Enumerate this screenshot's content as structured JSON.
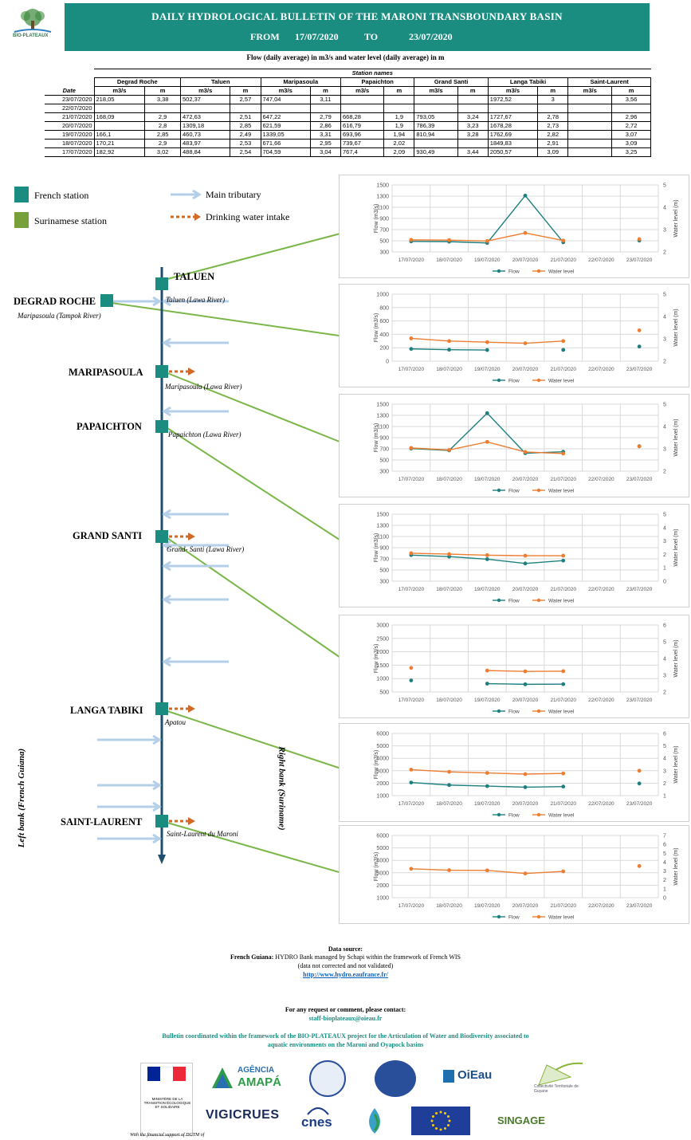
{
  "header": {
    "logo_text": "BIO-PLATEAUX",
    "title": "DAILY HYDROLOGICAL BULLETIN OF THE MARONI TRANSBOUNDARY BASIN",
    "from_label": "FROM",
    "from_date": "17/07/2020",
    "to_label": "TO",
    "to_date": "23/07/2020"
  },
  "subtitle": "Flow (daily average) in m3/s and water level (daily average) in m",
  "table": {
    "station_names_label": "Station names",
    "date_label": "Date",
    "stations": [
      "Degrad Roche",
      "Taluen",
      "Maripasoula",
      "Papaichton",
      "Grand Santi",
      "Langa Tabiki",
      "Saint-Laurent"
    ],
    "units": [
      "m3/s",
      "m",
      "m3/s",
      "m",
      "m3/s",
      "m",
      "m3/s",
      "m",
      "m3/s",
      "m",
      "m3/s",
      "m",
      "m3/s",
      "m"
    ],
    "rows": [
      {
        "date": "23/07/2020",
        "vals": [
          "218,05",
          "3,38",
          "502,37",
          "2,57",
          "747,04",
          "3,11",
          "",
          "",
          "",
          "",
          "1972,52",
          "3",
          "",
          "3,56"
        ]
      },
      {
        "date": "22/07/2020",
        "vals": [
          "",
          "",
          "",
          "",
          "",
          "",
          "",
          "",
          "",
          "",
          "",
          "",
          "",
          ""
        ]
      },
      {
        "date": "21/07/2020",
        "vals": [
          "168,09",
          "2,9",
          "472,63",
          "2,51",
          "647,22",
          "2,79",
          "668,28",
          "1,9",
          "793,05",
          "3,24",
          "1727,67",
          "2,78",
          "",
          "2,96"
        ]
      },
      {
        "date": "20/07/2020",
        "vals": [
          "",
          "2,8",
          "1309,18",
          "2,85",
          "621,59",
          "2,86",
          "616,79",
          "1,9",
          "786,39",
          "3,23",
          "1678,28",
          "2,73",
          "",
          "2,72"
        ]
      },
      {
        "date": "19/07/2020",
        "vals": [
          "166,1",
          "2,85",
          "460,73",
          "2,49",
          "1339,05",
          "3,31",
          "693,96",
          "1,94",
          "810,94",
          "3,28",
          "1762,69",
          "2,82",
          "",
          "3,07"
        ]
      },
      {
        "date": "18/07/2020",
        "vals": [
          "170,21",
          "2,9",
          "483,97",
          "2,53",
          "671,66",
          "2,95",
          "739,67",
          "2,02",
          "",
          "",
          "1849,83",
          "2,91",
          "",
          "3,09"
        ]
      },
      {
        "date": "17/07/2020",
        "vals": [
          "182,92",
          "3,02",
          "488,84",
          "2,54",
          "704,59",
          "3,04",
          "767,4",
          "2,09",
          "930,49",
          "3,44",
          "2050,57",
          "3,09",
          "",
          "3,25"
        ]
      }
    ]
  },
  "legend": {
    "french_station": "French station",
    "surinamese_station": "Surinamese station",
    "main_tributary": "Main tributary",
    "drinking_water": "Drinking water intake",
    "colors": {
      "french": "#1a8c80",
      "surinamese": "#77a03a",
      "tributary": "#b5cfe8",
      "intake": "#d06a25",
      "river": "#1f4e6e",
      "link": "#7ab648",
      "flow": "#1f7f7f",
      "level": "#ed7d31"
    }
  },
  "diagram": {
    "stations": {
      "taluen": "TALUEN",
      "degrad": "DEGRAD ROCHE",
      "maripasoula": "MARIPASOULA",
      "papaichton": "PAPAICHTON",
      "grand_santi": "GRAND SANTI",
      "langa_tabiki": "LANGA TABIKI",
      "saint_laurent": "SAINT-LAURENT"
    },
    "tribs": {
      "taluen": "Taluen (Lawa River)",
      "degrad": "Maripasoula (Tampok River)",
      "maripasoula": "Maripasoula (Lawa River)",
      "papaichton": "Papaichton (Lawa River)",
      "grand_santi": "Grand- Santi (Lawa River)",
      "langa_tabiki": "Apatou",
      "saint_laurent": "Saint-Laurent du Maroni"
    },
    "left_bank": "Left bank (French Guiana)",
    "right_bank": "Right bank (Suriname)"
  },
  "chart_data": [
    {
      "type": "line",
      "station": "Taluen",
      "x": [
        "17/07/2020",
        "18/07/2020",
        "19/07/2020",
        "20/07/2020",
        "21/07/2020",
        "22/07/2020",
        "23/07/2020"
      ],
      "ylabel": "Flow (m3/s)",
      "y2label": "Water level (m)",
      "ylim": [
        300,
        1500
      ],
      "yticks": [
        300,
        500,
        700,
        900,
        1100,
        1300,
        1500
      ],
      "y2lim": [
        2,
        5
      ],
      "y2ticks": [
        2,
        3,
        4,
        5
      ],
      "series": [
        {
          "name": "Flow",
          "axis": "left",
          "values": [
            488.84,
            483.97,
            460.73,
            1309.18,
            472.63,
            null,
            502.37
          ]
        },
        {
          "name": "Water level",
          "axis": "right",
          "values": [
            2.54,
            2.53,
            2.49,
            2.85,
            2.51,
            null,
            2.57
          ]
        }
      ]
    },
    {
      "type": "line",
      "station": "Degrad Roche",
      "x": [
        "17/07/2020",
        "18/07/2020",
        "19/07/2020",
        "20/07/2020",
        "21/07/2020",
        "22/07/2020",
        "23/07/2020"
      ],
      "ylabel": "Flow (m3/s)",
      "y2label": "Water level (m)",
      "ylim": [
        0,
        1000
      ],
      "yticks": [
        0,
        200,
        400,
        600,
        800,
        1000
      ],
      "y2lim": [
        2,
        5
      ],
      "y2ticks": [
        2,
        3,
        4,
        5
      ],
      "series": [
        {
          "name": "Flow",
          "axis": "left",
          "values": [
            182.92,
            170.21,
            166.1,
            null,
            168.09,
            null,
            218.05
          ]
        },
        {
          "name": "Water level",
          "axis": "right",
          "values": [
            3.02,
            2.9,
            2.85,
            2.8,
            2.9,
            null,
            3.38
          ]
        }
      ]
    },
    {
      "type": "line",
      "station": "Maripasoula",
      "x": [
        "17/07/2020",
        "18/07/2020",
        "19/07/2020",
        "20/07/2020",
        "21/07/2020",
        "22/07/2020",
        "23/07/2020"
      ],
      "ylabel": "Flow (m3/s)",
      "y2label": "Water level (m)",
      "ylim": [
        300,
        1500
      ],
      "yticks": [
        300,
        500,
        700,
        900,
        1100,
        1300,
        1500
      ],
      "y2lim": [
        2,
        5
      ],
      "y2ticks": [
        2,
        3,
        4,
        5
      ],
      "series": [
        {
          "name": "Flow",
          "axis": "left",
          "values": [
            704.59,
            671.66,
            1339.05,
            621.59,
            647.22,
            null,
            747.04
          ]
        },
        {
          "name": "Water level",
          "axis": "right",
          "values": [
            3.04,
            2.95,
            3.31,
            2.86,
            2.79,
            null,
            3.11
          ]
        }
      ]
    },
    {
      "type": "line",
      "station": "Papaichton",
      "x": [
        "17/07/2020",
        "18/07/2020",
        "19/07/2020",
        "20/07/2020",
        "21/07/2020",
        "22/07/2020",
        "23/07/2020"
      ],
      "ylabel": "Flow (m3/s)",
      "y2label": "Water level (m)",
      "ylim": [
        300,
        1500
      ],
      "yticks": [
        300,
        500,
        700,
        900,
        1100,
        1300,
        1500
      ],
      "y2lim": [
        0,
        5
      ],
      "y2ticks": [
        0,
        1,
        2,
        3,
        4,
        5
      ],
      "series": [
        {
          "name": "Flow",
          "axis": "left",
          "values": [
            767.4,
            739.67,
            693.96,
            616.79,
            668.28,
            null,
            null
          ]
        },
        {
          "name": "Water level",
          "axis": "right",
          "values": [
            2.09,
            2.02,
            1.94,
            1.9,
            1.9,
            null,
            null
          ]
        }
      ]
    },
    {
      "type": "line",
      "station": "Grand Santi",
      "x": [
        "17/07/2020",
        "18/07/2020",
        "19/07/2020",
        "20/07/2020",
        "21/07/2020",
        "22/07/2020",
        "23/07/2020"
      ],
      "ylabel": "Flow (m3/s)",
      "y2label": "Water level (m)",
      "ylim": [
        500,
        3000
      ],
      "yticks": [
        500,
        1000,
        1500,
        2000,
        2500,
        3000
      ],
      "y2lim": [
        2,
        6
      ],
      "y2ticks": [
        2,
        3,
        4,
        5,
        6
      ],
      "series": [
        {
          "name": "Flow",
          "axis": "left",
          "values": [
            930.49,
            null,
            810.94,
            786.39,
            793.05,
            null,
            null
          ]
        },
        {
          "name": "Water level",
          "axis": "right",
          "values": [
            3.44,
            null,
            3.28,
            3.23,
            3.24,
            null,
            null
          ]
        }
      ]
    },
    {
      "type": "line",
      "station": "Langa Tabiki",
      "x": [
        "17/07/2020",
        "18/07/2020",
        "19/07/2020",
        "20/07/2020",
        "21/07/2020",
        "22/07/2020",
        "23/07/2020"
      ],
      "ylabel": "Flow (m3/s)",
      "y2label": "Water level (m)",
      "ylim": [
        1000,
        6000
      ],
      "yticks": [
        1000,
        2000,
        3000,
        4000,
        5000,
        6000
      ],
      "y2lim": [
        1,
        6
      ],
      "y2ticks": [
        1,
        2,
        3,
        4,
        5,
        6
      ],
      "series": [
        {
          "name": "Flow",
          "axis": "left",
          "values": [
            2050.57,
            1849.83,
            1762.69,
            1678.28,
            1727.67,
            null,
            1972.52
          ]
        },
        {
          "name": "Water level",
          "axis": "right",
          "values": [
            3.09,
            2.91,
            2.82,
            2.73,
            2.78,
            null,
            3.0
          ]
        }
      ]
    },
    {
      "type": "line",
      "station": "Saint-Laurent",
      "x": [
        "17/07/2020",
        "18/07/2020",
        "19/07/2020",
        "20/07/2020",
        "21/07/2020",
        "22/07/2020",
        "23/07/2020"
      ],
      "ylabel": "Flow (m3/s)",
      "y2label": "Water level (m)",
      "ylim": [
        1000,
        6000
      ],
      "yticks": [
        1000,
        2000,
        3000,
        4000,
        5000,
        6000
      ],
      "y2lim": [
        0,
        7
      ],
      "y2ticks": [
        0,
        1,
        2,
        3,
        4,
        5,
        6,
        7
      ],
      "series": [
        {
          "name": "Flow",
          "axis": "left",
          "values": [
            null,
            null,
            null,
            null,
            null,
            null,
            null
          ]
        },
        {
          "name": "Water level",
          "axis": "right",
          "values": [
            3.25,
            3.09,
            3.07,
            2.72,
            2.96,
            null,
            3.56
          ]
        }
      ]
    }
  ],
  "footer": {
    "source_title": "Data source:",
    "source_bold": "French Guiana:",
    "source_text": "HYDRO Bank managed by Schapi within the framework of French WIS",
    "source_note": "(data not corrected and not validated)",
    "source_url": "http://www.hydro.eaufrance.fr/",
    "contact_title": "For any request or comment, please contact:",
    "contact_email": "staff-bioplateaux@oieau.fr",
    "coord_1": "Bulletin coordinated within the framework of the BIO-PLATEAUX project for the Articulation of Water and Biodiversity associated to",
    "coord_2": "aquatic environments on the Maroni and Oyapock basins",
    "support": "With the financial support of DGTM of",
    "logos": {
      "agencia": "AGÊNCIA",
      "amapa": "AMAPÁ",
      "oieau": "OiEau",
      "vigicrues": "VIGICRUES",
      "cnes": "cnes",
      "ministry": "MINISTÈRE DE LA TRANSITION ÉCOLOGIQUE ET SOLIDAIRE",
      "collectivite": "Collectivité Territoriale de Guyane",
      "singage": "SINGAGE"
    }
  }
}
